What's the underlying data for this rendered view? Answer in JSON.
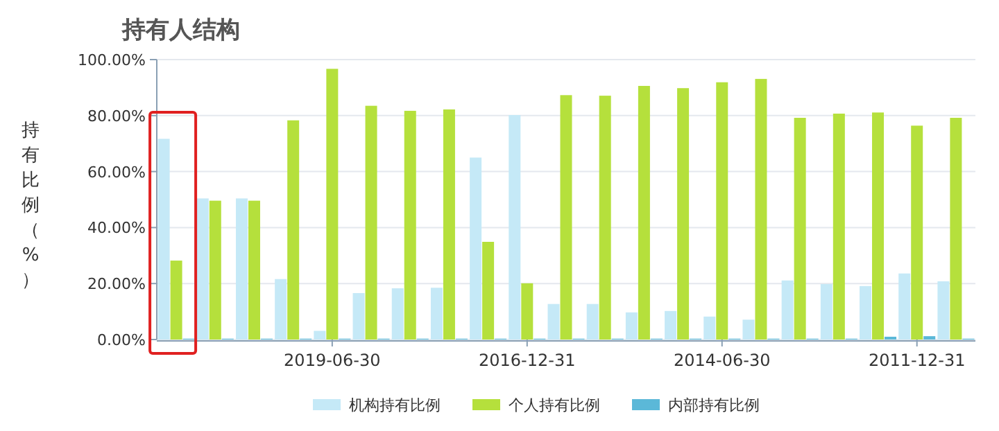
{
  "chart_data": {
    "type": "bar",
    "title": "持有人结构",
    "ylabel": "持有比例（%）",
    "categories": [
      null,
      null,
      null,
      null,
      "2019-06-30",
      null,
      null,
      null,
      null,
      "2016-12-31",
      null,
      null,
      null,
      null,
      "2014-06-30",
      null,
      null,
      null,
      null,
      "2011-12-31",
      null
    ],
    "series": [
      {
        "name": "机构持有比例",
        "color": "#c5e9f7",
        "values": [
          71.7,
          50.4,
          50.4,
          21.6,
          3.1,
          16.6,
          18.3,
          18.5,
          65,
          80.2,
          12.7,
          12.7,
          9.7,
          10.2,
          8.2,
          7.1,
          21.1,
          19.8,
          19.1,
          23.6,
          20.8
        ]
      },
      {
        "name": "个人持有比例",
        "color": "#b5e03c",
        "values": [
          28.2,
          49.6,
          49.6,
          78.3,
          96.7,
          83.5,
          81.7,
          82.2,
          34.9,
          20.1,
          87.3,
          87.1,
          90.6,
          89.8,
          91.9,
          93.1,
          79.2,
          80.7,
          81.1,
          76.4,
          79.2
        ]
      },
      {
        "name": "内部持有比例",
        "color": "#5bb8d8",
        "values": [
          0.3,
          0.3,
          0.3,
          0.3,
          0.3,
          0.3,
          0.3,
          0.3,
          0.3,
          0.3,
          0.3,
          0.3,
          0.3,
          0.3,
          0.3,
          0.3,
          0.3,
          0.3,
          1.0,
          1.2,
          0.3
        ]
      }
    ],
    "ylim": [
      0,
      100
    ],
    "yticks": [
      {
        "value": 0,
        "label": "0.00%"
      },
      {
        "value": 20,
        "label": "20.00%"
      },
      {
        "value": 40,
        "label": "40.00%"
      },
      {
        "value": 60,
        "label": "60.00%"
      },
      {
        "value": 80,
        "label": "80.00%"
      },
      {
        "value": 100,
        "label": "100.00%"
      }
    ],
    "grid": "y",
    "legend": "bottom"
  }
}
